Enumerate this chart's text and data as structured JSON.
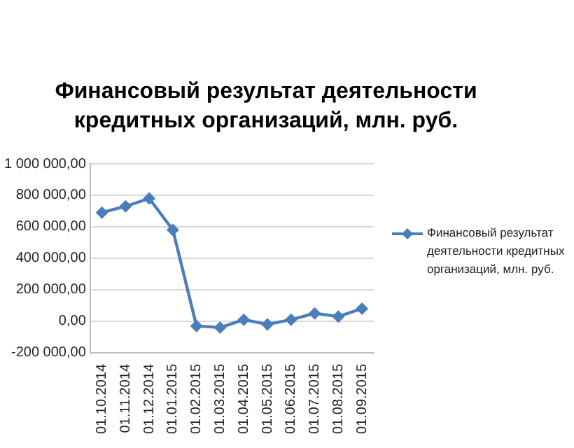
{
  "chart_data": {
    "type": "line",
    "title": "Финансовый результат деятельности кредитных организаций, млн. руб.",
    "categories": [
      "01.10.2014",
      "01.11.2014",
      "01.12.2014",
      "01.01.2015",
      "01.02.2015",
      "01.03.2015",
      "01.04.2015",
      "01.05.2015",
      "01.06.2015",
      "01.07.2015",
      "01.08.2015",
      "01.09.2015"
    ],
    "series": [
      {
        "name": "Финансовый результат деятельности кредитных организаций, млн. руб.",
        "color": "#4a7ebb",
        "values": [
          690000,
          730000,
          780000,
          580000,
          -30000,
          -40000,
          10000,
          -20000,
          10000,
          50000,
          30000,
          80000
        ]
      }
    ],
    "ylim": [
      -200000,
      1000000
    ],
    "yticks": [
      {
        "value": -200000,
        "label": "-200 000,00"
      },
      {
        "value": 0,
        "label": "0,00"
      },
      {
        "value": 200000,
        "label": "200 000,00"
      },
      {
        "value": 400000,
        "label": "400 000,00"
      },
      {
        "value": 600000,
        "label": "600 000,00"
      },
      {
        "value": 800000,
        "label": "800 000,00"
      },
      {
        "value": 1000000,
        "label": "1 000 000,00"
      }
    ],
    "grid": "y",
    "legend": "right",
    "marker": "diamond",
    "line_style": "solid"
  }
}
